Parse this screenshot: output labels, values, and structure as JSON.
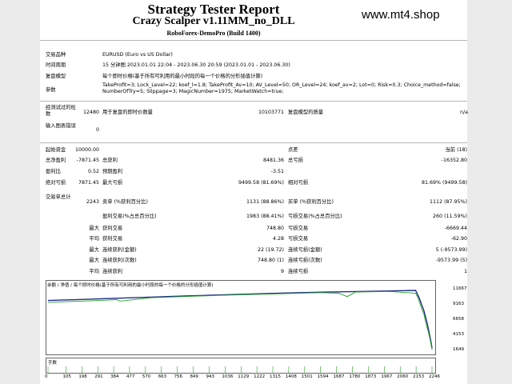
{
  "header": {
    "title": "Strategy Tester Report",
    "subtitle": "Crazy Scalper v1.11MM_no_DLL",
    "server": "RoboForex-DemoPro (Build 1400)",
    "watermark": "www.mt4.shop"
  },
  "info": {
    "symbol_label": "交易品种",
    "symbol_value": "EURUSD (Euro vs US Dollar)",
    "period_label": "时间周期",
    "period_value": "15 分钟图 2023.01.01 22:04 - 2023.06.30 20:59 (2023.01.01 - 2023.06.30)",
    "model_label": "复盘模型",
    "model_value": "每个即时价格(基于所有可利用的最小时段的每一个价格的分形插值计算)",
    "params_label": "参数",
    "params_value": "TakeProfit=3; Lock_Level=22; koef_l=1.8; TakeProfit_Av=10; AV_Level=50; OR_Level=24; koef_av=2; Lot=0; Risk=0.3; Choice_method=false; NumberOfTry=5; Slippage=3; MagicNumber=1975; MarketWatch=true;"
  },
  "bars": {
    "bars_label": "经测试过的柱数",
    "bars_value": "12480",
    "ticks_label": "用于复盘的即时价数量",
    "ticks_value": "10103771",
    "quality_label": "复盘模型的质量",
    "quality_value": "n/a",
    "mismatch_label": "输入图表错误",
    "mismatch_value": "0"
  },
  "stats": {
    "deposit_label": "起始资金",
    "deposit_value": "10000.00",
    "spread_label": "点差",
    "spread_value": "当前 (18)",
    "net_label": "总净盈利",
    "net_value": "-7871.45",
    "gross_profit_label": "总获利",
    "gross_profit_value": "8481.36",
    "gross_loss_label": "总亏损",
    "gross_loss_value": "-16352.80",
    "pf_label": "盈利比",
    "pf_value": "0.52",
    "payoff_label": "预期盈利",
    "payoff_value": "-3.51",
    "abs_dd_label": "绝对亏损",
    "abs_dd_value": "7871.45",
    "max_dd_label": "最大亏损",
    "max_dd_value": "9499.58 (81.69%)",
    "rel_dd_label": "相对亏损",
    "rel_dd_value": "81.69% (9499.58)",
    "trades_label": "交易单总计",
    "trades_value": "2243",
    "short_label": "卖单 (%获利百分比)",
    "short_value": "1131 (88.86%)",
    "long_label": "买单 (%获利百分比)",
    "long_value": "1112 (87.95%)",
    "profit_trades_label": "盈利交易(%占总百分比)",
    "profit_trades_value": "1983 (88.41%)",
    "loss_trades_label": "亏损交易(%占总百分比)",
    "loss_trades_value": "260 (11.59%)",
    "largest_label": "最大",
    "largest_profit_label": "获利交易",
    "largest_profit_value": "748.80",
    "largest_loss_label": "亏损交易",
    "largest_loss_value": "-6669.44",
    "average_label": "平均",
    "avg_profit_label": "获利交易",
    "avg_profit_value": "4.28",
    "avg_loss_label": "亏损交易",
    "avg_loss_value": "-62.90",
    "max_label": "最大",
    "max_consec_wins_label": "连续获利(金额)",
    "max_consec_wins_value": "22 (19.72)",
    "max_consec_losses_label": "连续亏损(金额)",
    "max_consec_losses_value": "5 (-9573.99)",
    "max2_label": "最大",
    "max_consec_profit_label": "连续获利(次数)",
    "max_consec_profit_value": "748.80 (1)",
    "max_consec_loss_label": "连续亏损(次数)",
    "max_consec_loss_value": "-9573.99 (5)",
    "avg2_label": "平均",
    "avg_consec_wins_label": "连续获利",
    "avg_consec_wins_value": "9",
    "avg_consec_losses_label": "连续亏损",
    "avg_consec_losses_value": "1"
  },
  "chart_legend": "余额 / 净值 / 每个即时价格(基于所有可利用的最小时段的每一个价格的分形插值计算)",
  "chart_volume_label": "手数",
  "chart_data": {
    "type": "line",
    "title": "",
    "y_ticks": [
      "11667",
      "9163",
      "6658",
      "4153",
      "1649"
    ],
    "x_ticks": [
      "0",
      "105",
      "198",
      "291",
      "384",
      "477",
      "570",
      "663",
      "756",
      "849",
      "943",
      "1036",
      "1129",
      "1222",
      "1315",
      "1408",
      "1501",
      "1594",
      "1687",
      "1780",
      "1873",
      "1967",
      "2060",
      "2153",
      "2246"
    ],
    "ylim": [
      1649,
      11667
    ],
    "xlim": [
      0,
      2246
    ],
    "series": [
      {
        "color": "#1f2d8c",
        "x": [
          0,
          200,
          400,
          600,
          800,
          1000,
          1200,
          1400,
          1600,
          1800,
          2000,
          2150,
          2170,
          2200,
          2220,
          2240,
          2246
        ],
        "y": [
          10000,
          10180,
          10380,
          10560,
          10740,
          10920,
          11090,
          11250,
          11380,
          11480,
          11580,
          11667,
          10500,
          8200,
          6000,
          3200,
          2130
        ]
      },
      {
        "color": "#22a022",
        "x": [
          0,
          300,
          400,
          420,
          600,
          1000,
          1200,
          1400,
          1600,
          1700,
          1750,
          1800,
          2000,
          2150,
          2165,
          2180,
          2200,
          2210,
          2225,
          2240,
          2246
        ],
        "y": [
          9700,
          10000,
          10150,
          9900,
          10450,
          10850,
          11000,
          11150,
          11300,
          11200,
          10650,
          11400,
          11500,
          11200,
          10400,
          9100,
          7600,
          6300,
          4800,
          2900,
          1900
        ]
      }
    ]
  }
}
